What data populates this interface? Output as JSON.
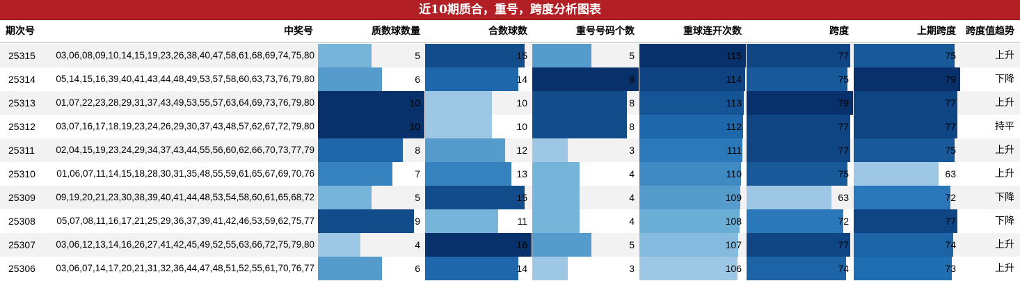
{
  "title": "近10期质合，重号，跨度分析图表",
  "chart_data": {
    "type": "table",
    "columns": [
      "期次号",
      "中奖号",
      "质数球数量",
      "合数球数",
      "重号号码个数",
      "重球连开次数",
      "跨度",
      "上期跨度",
      "跨度值趋势"
    ],
    "rows": [
      {
        "issue": "25315",
        "numbers": "03,06,08,09,10,14,15,19,23,26,38,40,47,58,61,68,69,74,75,80",
        "prime": 5,
        "composite": 15,
        "repeat": 5,
        "consecutive": 115,
        "span": 77,
        "prev_span": 75,
        "trend": "上升"
      },
      {
        "issue": "25314",
        "numbers": "05,14,15,16,39,40,41,43,44,48,49,53,57,58,60,63,73,76,79,80",
        "prime": 6,
        "composite": 14,
        "repeat": 9,
        "consecutive": 114,
        "span": 75,
        "prev_span": 79,
        "trend": "下降"
      },
      {
        "issue": "25313",
        "numbers": "01,07,22,23,28,29,31,37,43,49,53,55,57,63,64,69,73,76,79,80",
        "prime": 10,
        "composite": 10,
        "repeat": 8,
        "consecutive": 113,
        "span": 79,
        "prev_span": 77,
        "trend": "上升"
      },
      {
        "issue": "25312",
        "numbers": "03,07,16,17,18,19,23,24,26,29,30,37,43,48,57,62,67,72,79,80",
        "prime": 10,
        "composite": 10,
        "repeat": 8,
        "consecutive": 112,
        "span": 77,
        "prev_span": 77,
        "trend": "持平"
      },
      {
        "issue": "25311",
        "numbers": "02,04,15,19,23,24,29,34,37,43,44,55,56,60,62,66,70,73,77,79",
        "prime": 8,
        "composite": 12,
        "repeat": 3,
        "consecutive": 111,
        "span": 77,
        "prev_span": 75,
        "trend": "上升"
      },
      {
        "issue": "25310",
        "numbers": "01,06,07,11,14,15,18,28,30,31,35,48,55,59,61,65,67,69,70,76",
        "prime": 7,
        "composite": 13,
        "repeat": 4,
        "consecutive": 110,
        "span": 75,
        "prev_span": 63,
        "trend": "上升"
      },
      {
        "issue": "25309",
        "numbers": "09,19,20,21,23,30,38,39,40,41,44,48,53,54,58,60,61,65,68,72",
        "prime": 5,
        "composite": 15,
        "repeat": 4,
        "consecutive": 109,
        "span": 63,
        "prev_span": 72,
        "trend": "下降"
      },
      {
        "issue": "25308",
        "numbers": "05,07,08,11,16,17,21,25,29,36,37,39,41,42,46,53,59,62,75,77",
        "prime": 9,
        "composite": 11,
        "repeat": 4,
        "consecutive": 108,
        "span": 72,
        "prev_span": 77,
        "trend": "下降"
      },
      {
        "issue": "25307",
        "numbers": "03,06,12,13,14,16,26,27,41,42,45,49,52,55,63,66,72,75,79,80",
        "prime": 4,
        "composite": 16,
        "repeat": 5,
        "consecutive": 107,
        "span": 77,
        "prev_span": 74,
        "trend": "上升"
      },
      {
        "issue": "25306",
        "numbers": "03,06,07,14,17,20,21,31,32,36,44,47,48,51,52,55,61,70,76,77",
        "prime": 6,
        "composite": 14,
        "repeat": 3,
        "consecutive": 106,
        "span": 74,
        "prev_span": 73,
        "trend": "上升"
      }
    ]
  },
  "colors": {
    "title_bg": "#b21f24",
    "row_alt": "#f2f2f2",
    "scale_light": "#c6dbef",
    "scale_mid": "#4292c6",
    "scale_dark": "#08306b"
  }
}
